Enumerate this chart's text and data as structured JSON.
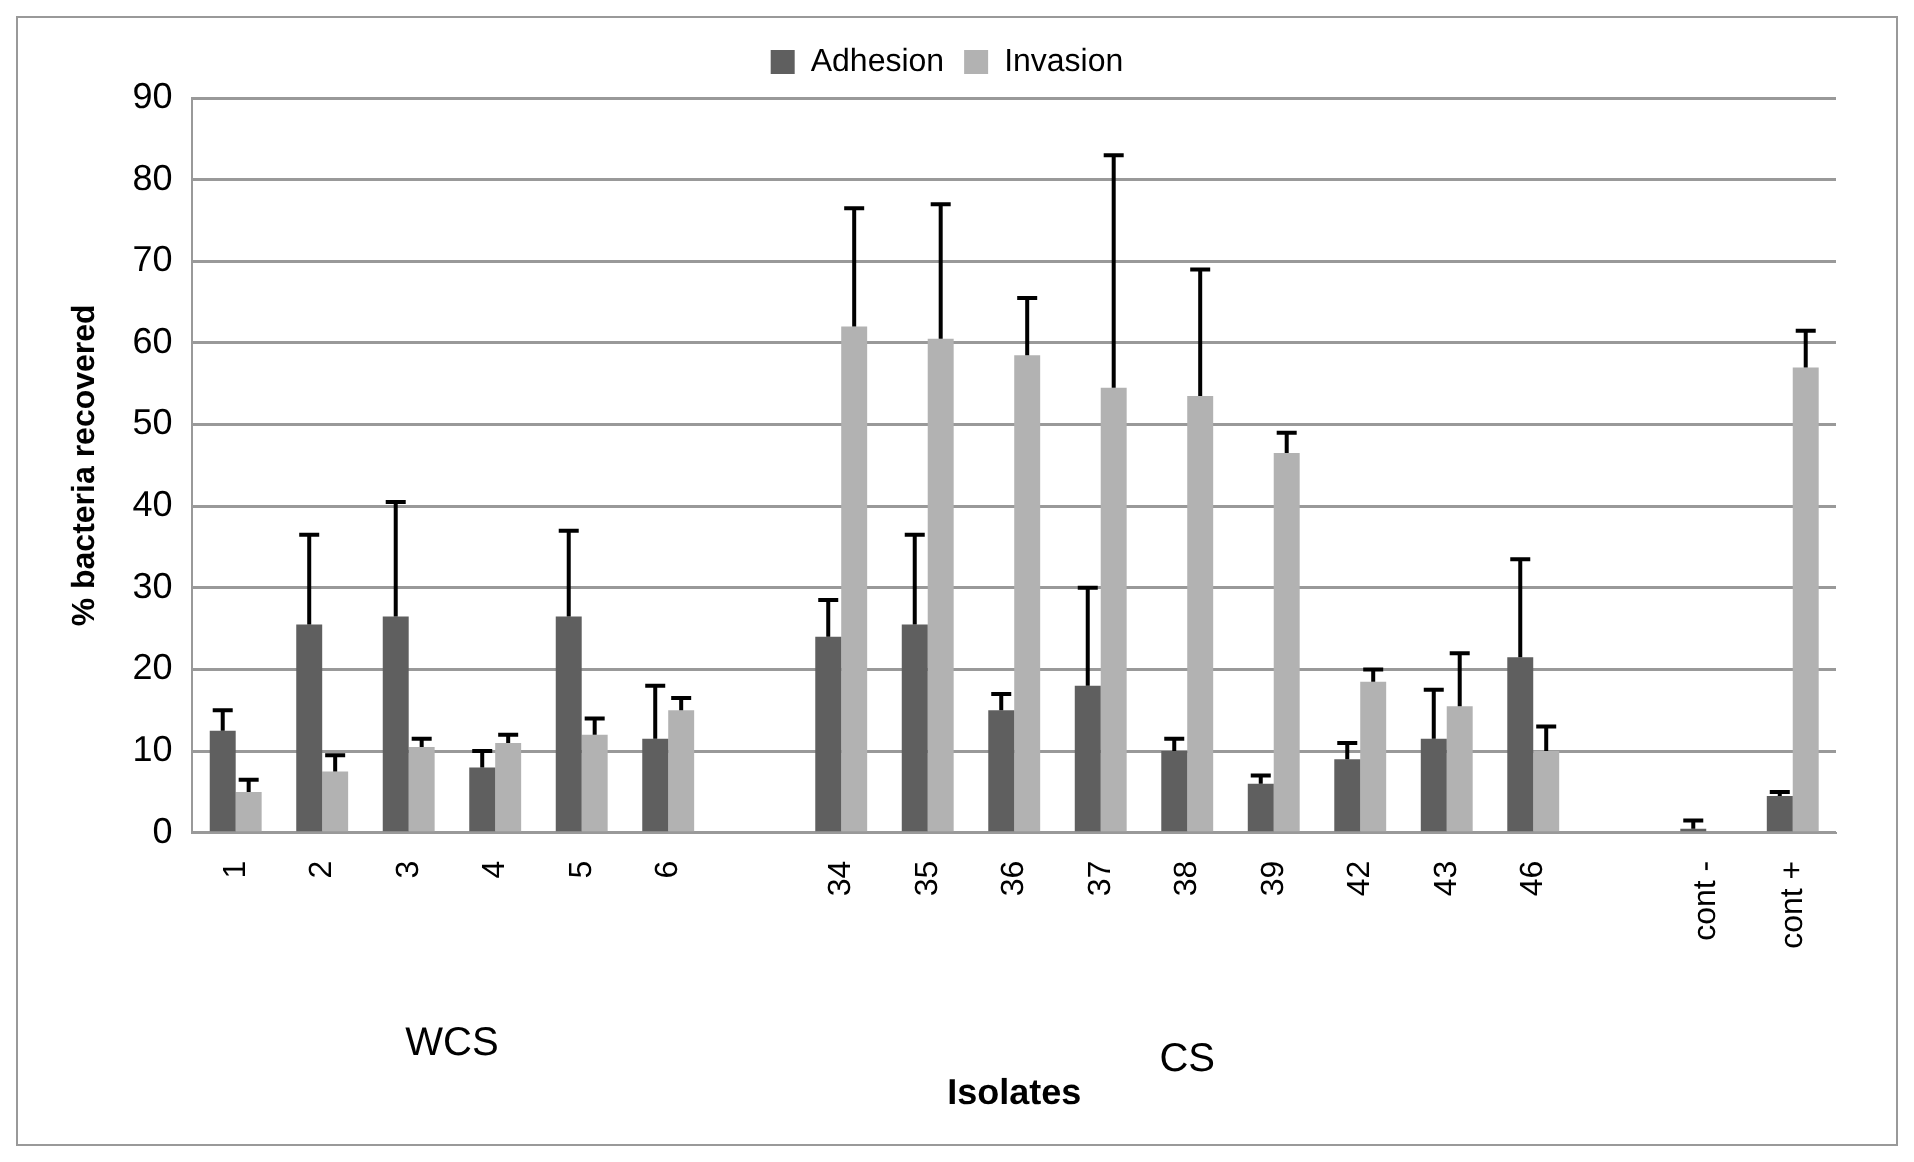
{
  "chart_data": {
    "type": "bar",
    "xlabel": "Isolates",
    "ylabel": "% bacteria recovered",
    "categories": [
      "1",
      "2",
      "3",
      "4",
      "5",
      "6",
      null,
      "34",
      "35",
      "36",
      "37",
      "38",
      "39",
      "42",
      "43",
      "46",
      null,
      "cont -",
      "cont +"
    ],
    "series": [
      {
        "name": "Adhesion",
        "color": "#5f5f5f",
        "values": [
          12.5,
          25.5,
          26.5,
          8,
          26.5,
          11.5,
          null,
          24,
          25.5,
          15,
          18,
          10,
          6,
          9,
          11.5,
          21.5,
          null,
          0.5,
          4.5
        ],
        "errors": [
          [
            12.5,
            15
          ],
          [
            25.5,
            36.5
          ],
          [
            26.5,
            40.5
          ],
          [
            8,
            10
          ],
          [
            26.5,
            37
          ],
          [
            11.5,
            18
          ],
          null,
          [
            24,
            28.5
          ],
          [
            25.5,
            36.5
          ],
          [
            15,
            17
          ],
          [
            18,
            30
          ],
          [
            10,
            11.5
          ],
          [
            6,
            7
          ],
          [
            9,
            11
          ],
          [
            11.5,
            17.5
          ],
          [
            21.5,
            33.5
          ],
          null,
          [
            0.5,
            1.5
          ],
          [
            4.5,
            5
          ]
        ]
      },
      {
        "name": "Invasion",
        "color": "#b2b2b2",
        "values": [
          5,
          7.5,
          10.5,
          11,
          12,
          15,
          null,
          62,
          60.5,
          58.5,
          54.5,
          53.5,
          46.5,
          18.5,
          15.5,
          10,
          null,
          null,
          57
        ],
        "errors": [
          [
            5,
            6.5
          ],
          [
            7.5,
            9.5
          ],
          [
            10.5,
            11.5
          ],
          [
            11,
            12
          ],
          [
            12,
            14
          ],
          [
            15,
            16.5
          ],
          null,
          [
            62,
            76.5
          ],
          [
            60.5,
            77
          ],
          [
            58.5,
            65.5
          ],
          [
            54.5,
            83
          ],
          [
            53.5,
            69
          ],
          [
            46.5,
            49
          ],
          [
            18.5,
            20
          ],
          [
            15.5,
            22
          ],
          [
            10,
            13
          ],
          null,
          null,
          [
            57,
            61.5
          ]
        ]
      }
    ],
    "ylim": [
      0,
      90
    ],
    "yticks": [
      0,
      10,
      20,
      30,
      40,
      50,
      60,
      70,
      80,
      90
    ],
    "grid": "y",
    "legend": "top",
    "annotations": [
      "WCS",
      "CS"
    ]
  }
}
